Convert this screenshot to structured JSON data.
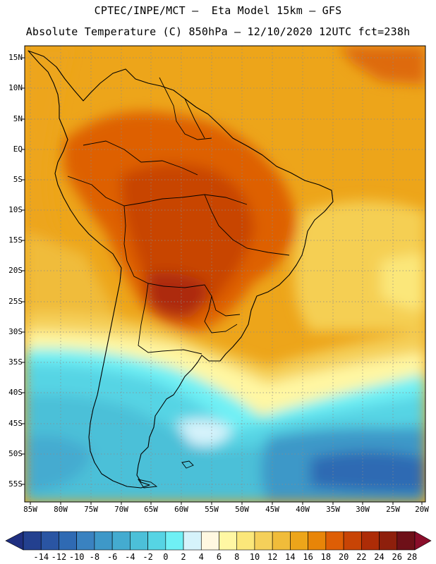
{
  "header": {
    "line1": "CPTEC/INPE/MCT –  Eta Model 15km – GFS",
    "line2": "Absolute Temperature (C) 850hPa – 12/10/2020 12UTC fct=238h"
  },
  "map": {
    "region": "South America",
    "lat_labels": [
      "15N",
      "10N",
      "5N",
      "EQ",
      "5S",
      "10S",
      "15S",
      "20S",
      "25S",
      "30S",
      "35S",
      "40S",
      "45S",
      "50S",
      "55S"
    ],
    "lon_labels": [
      "85W",
      "80W",
      "75W",
      "70W",
      "65W",
      "60W",
      "55W",
      "50W",
      "45W",
      "40W",
      "35W",
      "30W",
      "25W",
      "20W"
    ],
    "lat_range": [
      17,
      -58
    ],
    "lon_range": [
      -86,
      -19
    ]
  },
  "colorbar": {
    "labels": [
      "-14",
      "-12",
      "-10",
      "-8",
      "-6",
      "-4",
      "-2",
      "0",
      "2",
      "4",
      "6",
      "8",
      "10",
      "12",
      "14",
      "16",
      "18",
      "20",
      "22",
      "24",
      "26",
      "28"
    ],
    "colors": [
      "#23408f",
      "#2a55a3",
      "#2f6ab3",
      "#3a82c0",
      "#3e98c8",
      "#44abd0",
      "#4cc0d8",
      "#56d4e4",
      "#6ff0f5",
      "#d6f3fb",
      "#fff8e1",
      "#fff7a3",
      "#fbe77a",
      "#f5d05a",
      "#f0bc3a",
      "#eda51a",
      "#e88508",
      "#de5e05",
      "#c84405",
      "#ad2c07",
      "#8e1f0c",
      "#6e1018"
    ],
    "low_arrow_color": "#1f2f80",
    "high_arrow_color": "#8a0d2a"
  }
}
